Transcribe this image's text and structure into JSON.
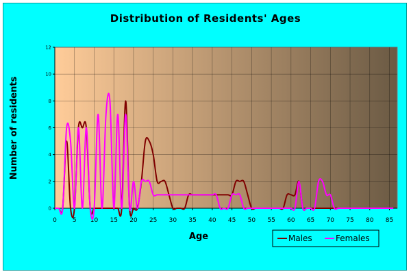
{
  "chart_data": {
    "type": "line",
    "title": "Distribution of Residents' Ages",
    "xlabel": "Age",
    "ylabel": "Number of residents",
    "xlim": [
      0,
      87
    ],
    "ylim": [
      0,
      12
    ],
    "x_ticks": [
      0,
      5,
      10,
      15,
      20,
      25,
      30,
      35,
      40,
      45,
      50,
      55,
      60,
      65,
      70,
      75,
      80,
      85
    ],
    "y_ticks": [
      0,
      2,
      4,
      6,
      8,
      10,
      12
    ],
    "grid": true,
    "legend_position": "bottom-right",
    "background_gradient": [
      "#FFCC99",
      "#6B5A44"
    ],
    "series": [
      {
        "name": "Males",
        "color": "#800000",
        "x": [
          0,
          1,
          2,
          3,
          4,
          5,
          6,
          7,
          8,
          9,
          10,
          11,
          12,
          13,
          14,
          15,
          16,
          17,
          18,
          19,
          20,
          21,
          22,
          23,
          24,
          25,
          26,
          27,
          28,
          29,
          30,
          31,
          32,
          33,
          34,
          35,
          36,
          37,
          38,
          39,
          40,
          41,
          42,
          43,
          44,
          45,
          46,
          47,
          48,
          49,
          50,
          51,
          52,
          53,
          54,
          55,
          56,
          57,
          58,
          59,
          60,
          61,
          62,
          63,
          64,
          65,
          66,
          67,
          68,
          69,
          70,
          71,
          72,
          73,
          74,
          75,
          76,
          77,
          78,
          79,
          80,
          81,
          82,
          83,
          84,
          85,
          86
        ],
        "values": [
          0,
          0,
          0,
          5,
          0,
          0,
          6,
          6,
          6,
          0,
          0,
          0,
          0,
          0,
          0,
          0,
          0,
          0,
          8,
          0,
          0,
          0,
          2,
          5,
          5,
          4,
          2,
          2,
          2,
          1,
          0,
          0,
          0,
          0,
          1,
          1,
          1,
          1,
          1,
          1,
          1,
          1,
          1,
          1,
          1,
          1,
          2,
          2,
          2,
          1,
          0,
          0,
          0,
          0,
          0,
          0,
          0,
          0,
          0,
          1,
          1,
          1,
          2,
          0,
          0,
          0,
          0,
          0,
          0,
          0,
          0,
          0,
          0,
          0,
          0,
          0,
          0,
          0,
          0,
          0,
          0,
          0,
          0,
          0,
          0,
          0,
          0
        ]
      },
      {
        "name": "Females",
        "color": "#FF00FF",
        "x": [
          0,
          1,
          2,
          3,
          4,
          5,
          6,
          7,
          8,
          9,
          10,
          11,
          12,
          13,
          14,
          15,
          16,
          17,
          18,
          19,
          20,
          21,
          22,
          23,
          24,
          25,
          26,
          27,
          28,
          29,
          30,
          31,
          32,
          33,
          34,
          35,
          36,
          37,
          38,
          39,
          40,
          41,
          42,
          43,
          44,
          45,
          46,
          47,
          48,
          49,
          50,
          51,
          52,
          53,
          54,
          55,
          56,
          57,
          58,
          59,
          60,
          61,
          62,
          63,
          64,
          65,
          66,
          67,
          68,
          69,
          70,
          71,
          72,
          73,
          74,
          75,
          76,
          77,
          78,
          79,
          80,
          81,
          82,
          83,
          84,
          85,
          86
        ],
        "values": [
          0,
          0,
          0,
          6,
          5,
          0,
          6,
          0,
          6,
          0,
          0,
          7,
          0,
          7,
          8,
          0,
          7,
          0,
          7,
          0,
          2,
          0,
          2,
          2,
          2,
          1,
          1,
          1,
          1,
          1,
          1,
          1,
          1,
          1,
          1,
          1,
          1,
          1,
          1,
          1,
          1,
          1,
          0,
          0,
          0,
          1,
          1,
          1,
          0,
          0,
          0,
          0,
          0,
          0,
          0,
          0,
          0,
          0,
          0,
          0,
          0,
          0,
          2,
          0,
          0,
          0,
          0,
          2,
          2,
          1,
          1,
          0,
          0,
          0,
          0,
          0,
          0,
          0,
          0,
          0,
          0,
          0,
          0,
          0,
          0,
          0,
          0
        ]
      }
    ]
  }
}
